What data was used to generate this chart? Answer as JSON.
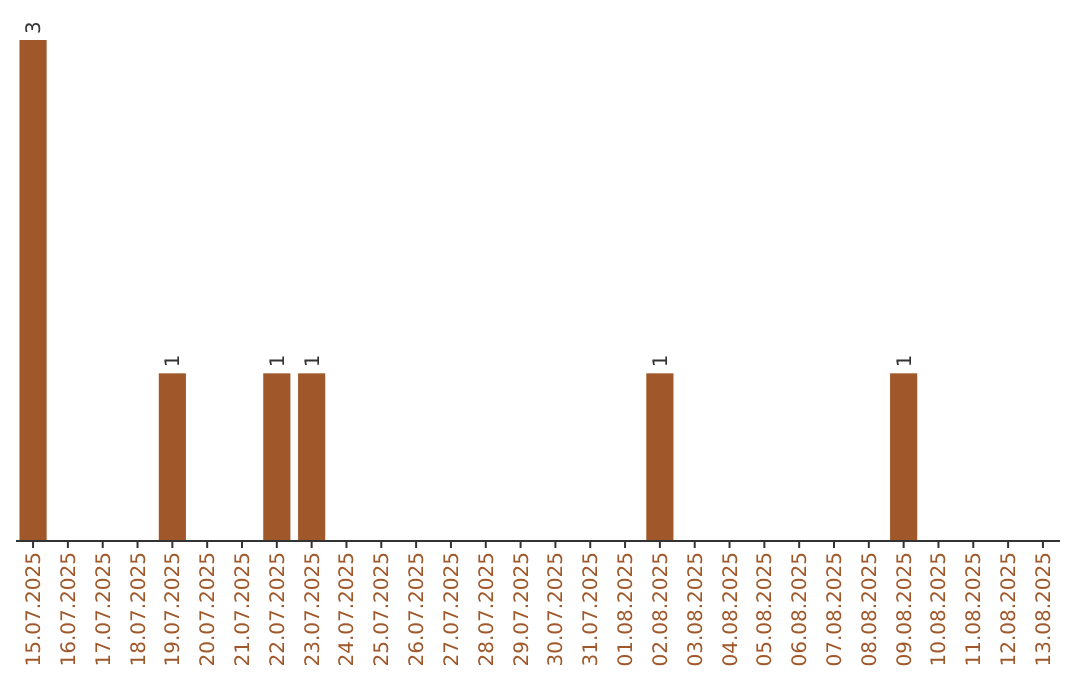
{
  "chart_data": {
    "type": "bar",
    "categories": [
      "15.07.2025",
      "16.07.2025",
      "17.07.2025",
      "18.07.2025",
      "19.07.2025",
      "20.07.2025",
      "21.07.2025",
      "22.07.2025",
      "23.07.2025",
      "24.07.2025",
      "25.07.2025",
      "26.07.2025",
      "27.07.2025",
      "28.07.2025",
      "29.07.2025",
      "30.07.2025",
      "31.07.2025",
      "01.08.2025",
      "02.08.2025",
      "03.08.2025",
      "04.08.2025",
      "05.08.2025",
      "06.08.2025",
      "07.08.2025",
      "08.08.2025",
      "09.08.2025",
      "10.08.2025",
      "11.08.2025",
      "12.08.2025",
      "13.08.2025"
    ],
    "values": [
      3,
      0,
      0,
      0,
      1,
      0,
      0,
      1,
      1,
      0,
      0,
      0,
      0,
      0,
      0,
      0,
      0,
      0,
      1,
      0,
      0,
      0,
      0,
      0,
      0,
      1,
      0,
      0,
      0,
      0
    ],
    "value_labels": [
      "3",
      null,
      null,
      null,
      "1",
      null,
      null,
      "1",
      "1",
      null,
      null,
      null,
      null,
      null,
      null,
      null,
      null,
      null,
      "1",
      null,
      null,
      null,
      null,
      null,
      null,
      "1",
      null,
      null,
      null,
      null
    ],
    "color": "#a0582a",
    "tick_labels": "x"
  }
}
